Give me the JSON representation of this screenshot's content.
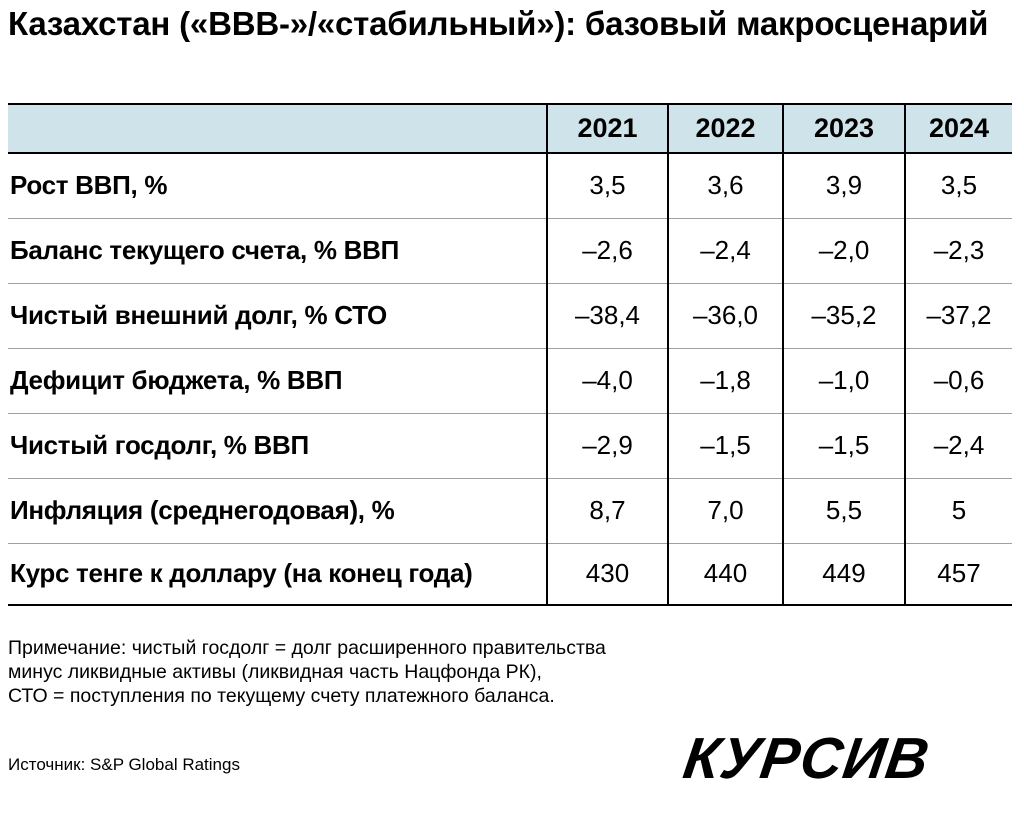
{
  "title": "Казахстан («BBB-»/«стабильный»): базовый макросценарий",
  "chart_data": {
    "type": "table",
    "columns": [
      "2021",
      "2022",
      "2023",
      "2024"
    ],
    "rows": [
      {
        "label": "Рост ВВП, %",
        "values": [
          "3,5",
          "3,6",
          "3,9",
          "3,5"
        ]
      },
      {
        "label": "Баланс текущего счета, % ВВП",
        "values": [
          "–2,6",
          "–2,4",
          "–2,0",
          "–2,3"
        ]
      },
      {
        "label": "Чистый внешний долг, % СТО",
        "values": [
          "–38,4",
          "–36,0",
          "–35,2",
          "–37,2"
        ]
      },
      {
        "label": "Дефицит бюджета, % ВВП",
        "values": [
          "–4,0",
          "–1,8",
          "–1,0",
          "–0,6"
        ]
      },
      {
        "label": "Чистый госдолг, % ВВП",
        "values": [
          "–2,9",
          "–1,5",
          "–1,5",
          "–2,4"
        ]
      },
      {
        "label": "Инфляция (среднегодовая), %",
        "values": [
          "8,7",
          "7,0",
          "5,5",
          "5"
        ]
      },
      {
        "label": "Курс тенге к доллару (на конец года)",
        "values": [
          "430",
          "440",
          "449",
          "457"
        ]
      }
    ]
  },
  "note": {
    "lines": [
      "Примечание: чистый госдолг = долг расширенного правительства",
      "минус ликвидные активы (ликвидная часть Нацфонда РК),",
      "СТО = поступления по текущему счету платежного баланса."
    ]
  },
  "source": "Источник: S&P Global Ratings",
  "logo": "КУРСИВ",
  "colors": {
    "header_background": "#cfe3ea",
    "text": "#000000",
    "row_divider": "#a0a0a0"
  }
}
